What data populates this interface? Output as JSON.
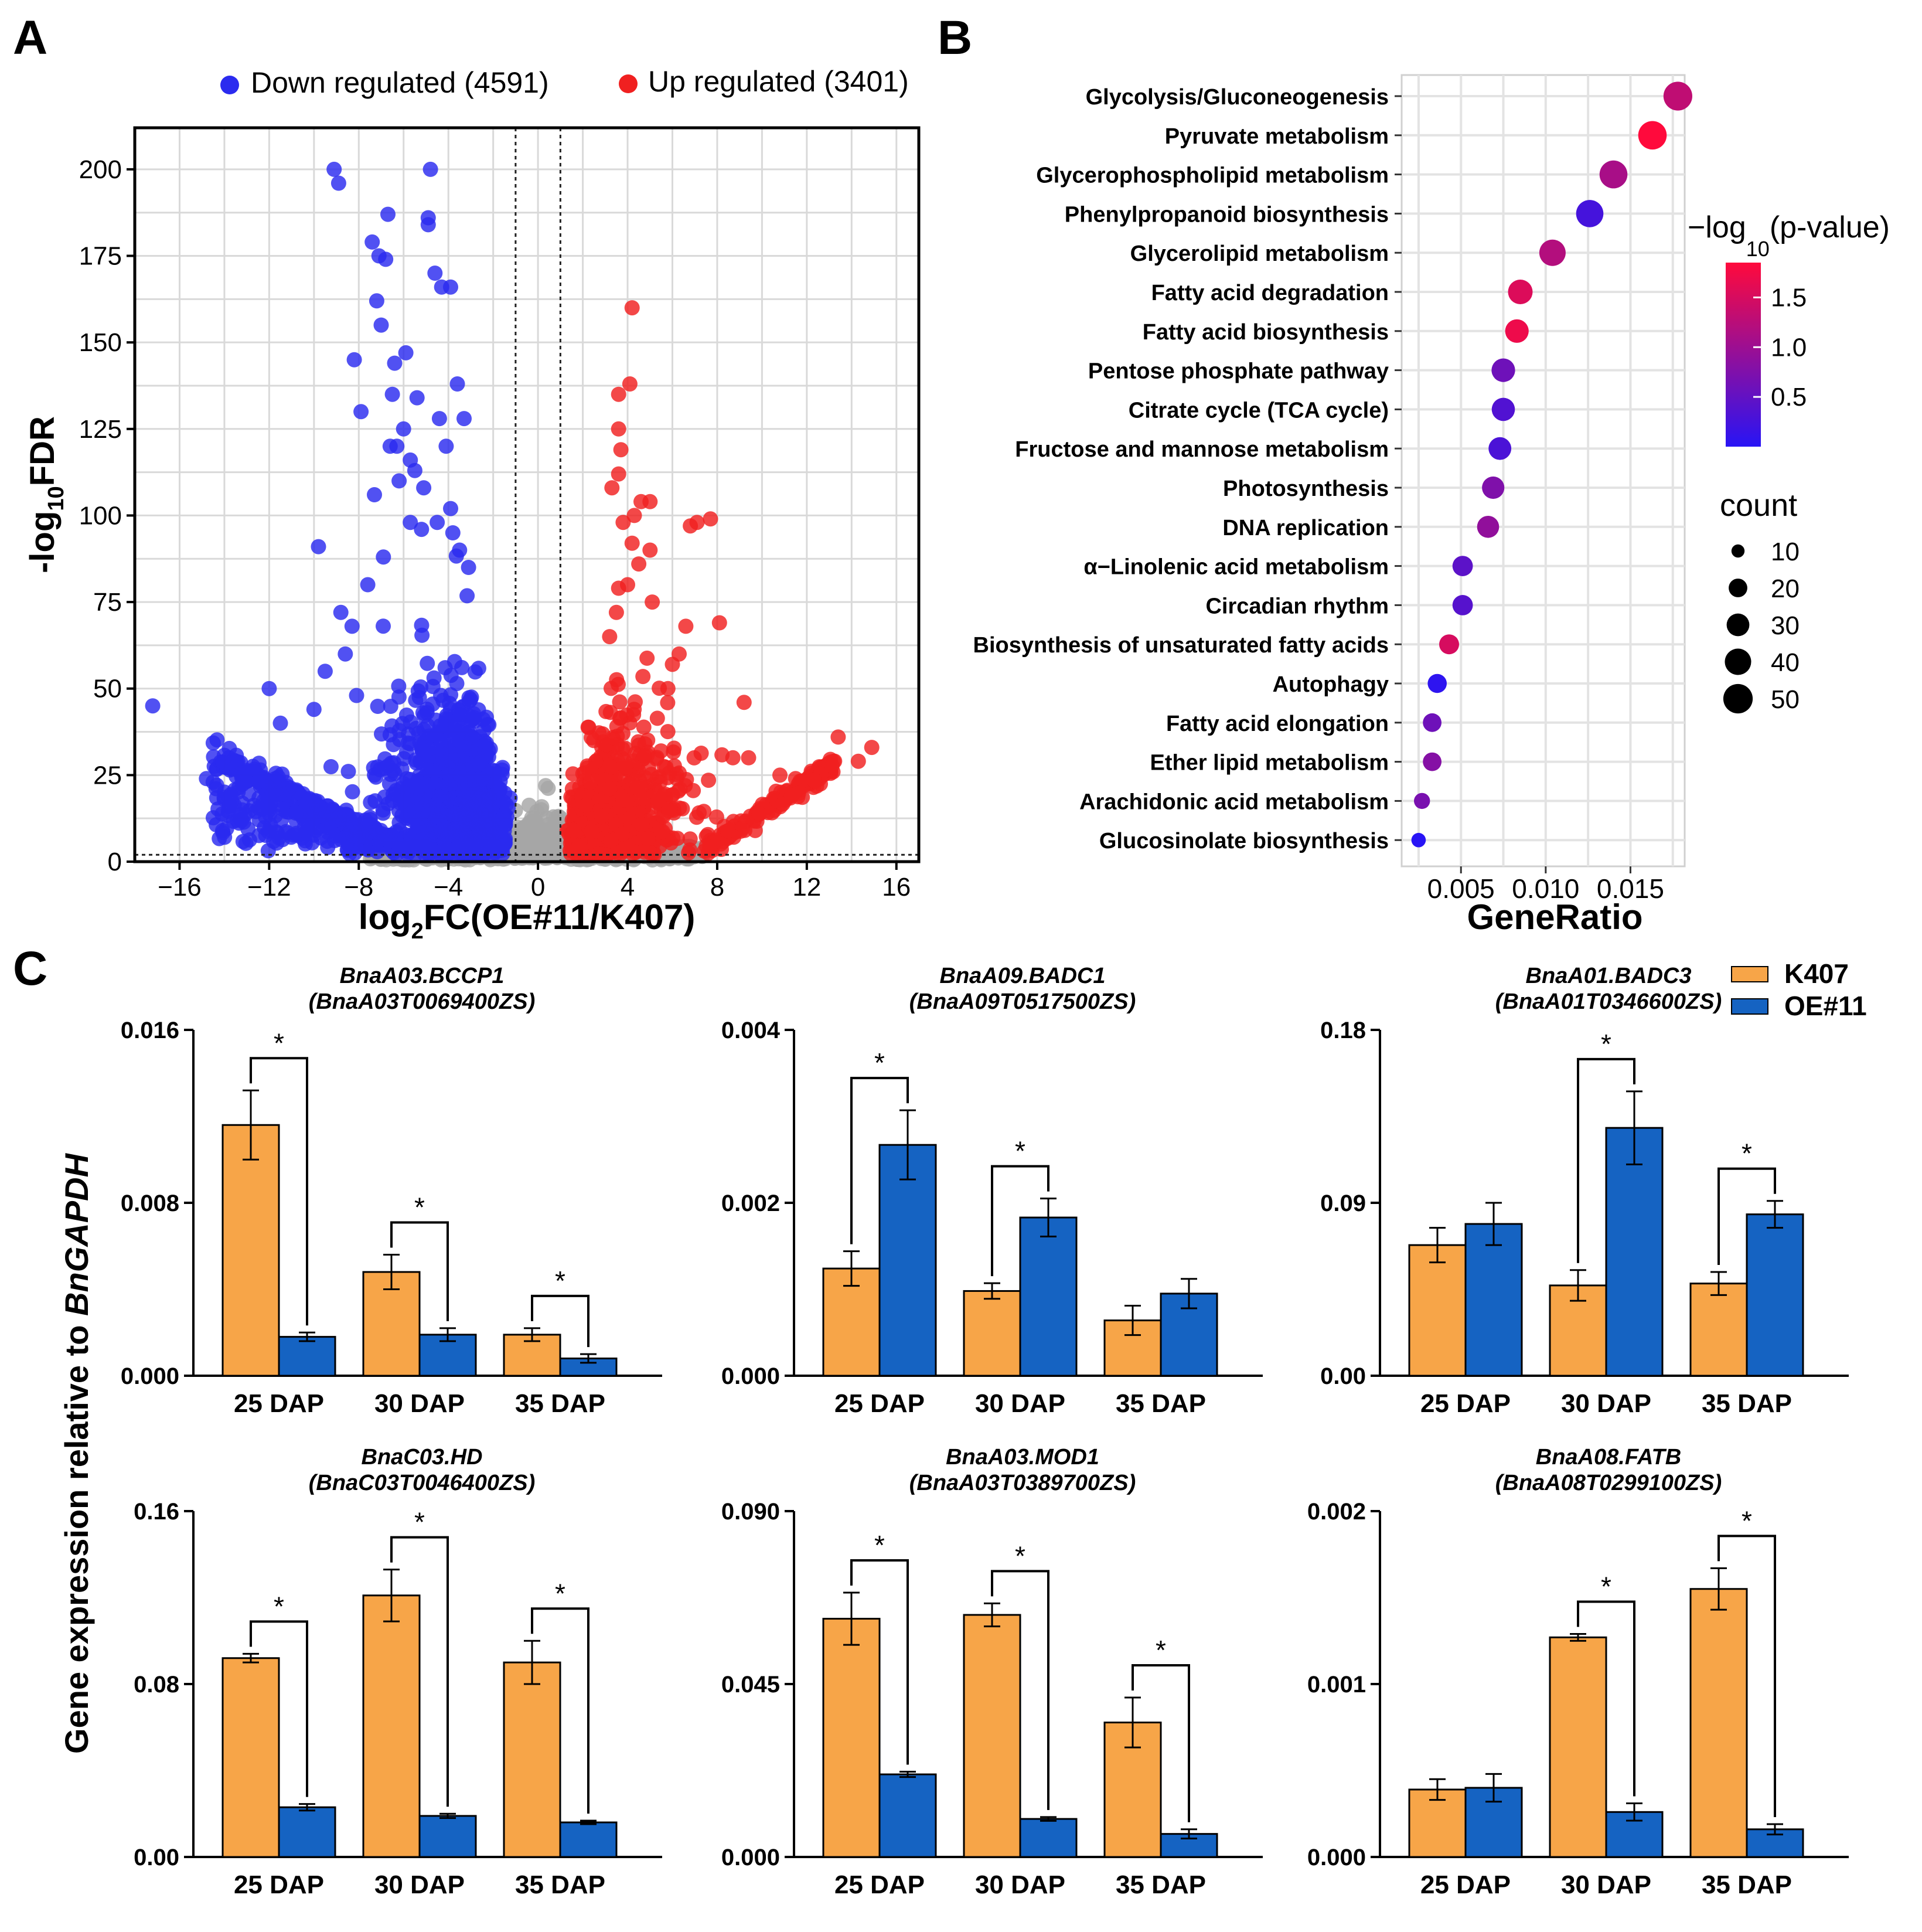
{
  "panel_labels": {
    "a": "A",
    "b": "B",
    "c": "C"
  },
  "chart_data": [
    {
      "id": "volcano",
      "type": "scatter",
      "xlabel_main": "log",
      "xlabel_sub": "2",
      "xlabel_rest": "FC(OE#11/K407)",
      "ylabel_pre": "-log",
      "ylabel_sub": "10",
      "ylabel_post": "FDR",
      "xlim": [
        -18,
        17
      ],
      "ylim": [
        0,
        212
      ],
      "xticks": [
        -16,
        -12,
        -8,
        -4,
        0,
        4,
        8,
        12,
        16
      ],
      "yticks": [
        0,
        25,
        50,
        75,
        100,
        125,
        150,
        175,
        200
      ],
      "thresholds": {
        "fdr_line": 2,
        "fc_lines": [
          -1,
          1
        ]
      },
      "grid": true,
      "legend": [
        {
          "label": "Down regulated (4591)",
          "color": "#2b2bef"
        },
        {
          "label": "Up regulated (3401)",
          "color": "#f02020"
        }
      ],
      "colors": {
        "down": "#2b2bef",
        "up": "#f02020",
        "ns": "#a6a6a6"
      },
      "highlight_points": {
        "down": [
          [
            -17.2,
            45
          ],
          [
            -14.8,
            24
          ],
          [
            -14.5,
            23
          ],
          [
            -13.8,
            30
          ],
          [
            -12,
            50
          ],
          [
            -12.5,
            23
          ],
          [
            -11.8,
            20
          ],
          [
            -11.5,
            40
          ],
          [
            -10.8,
            14
          ],
          [
            -10,
            44
          ],
          [
            -9.8,
            91
          ],
          [
            -9.5,
            55
          ],
          [
            -9.1,
            200
          ],
          [
            -8.9,
            196
          ],
          [
            -8.8,
            72
          ],
          [
            -8.6,
            60
          ],
          [
            -8.2,
            145
          ],
          [
            -8.1,
            48
          ],
          [
            -7.9,
            130
          ],
          [
            -7.4,
            179
          ],
          [
            -7.2,
            162
          ],
          [
            -7.1,
            175
          ],
          [
            -7.3,
            106
          ],
          [
            -7,
            155
          ],
          [
            -6.8,
            174
          ],
          [
            -6.7,
            187
          ],
          [
            -6.6,
            120
          ],
          [
            -6.5,
            135
          ],
          [
            -6.4,
            144
          ],
          [
            -6.3,
            120
          ],
          [
            -6.2,
            110
          ],
          [
            -6,
            125
          ],
          [
            -5.9,
            147
          ],
          [
            -5.7,
            116
          ],
          [
            -5.5,
            113
          ],
          [
            -5.4,
            134
          ],
          [
            -5.2,
            96
          ],
          [
            -5.1,
            108
          ],
          [
            -4.9,
            186
          ],
          [
            -4.9,
            184
          ],
          [
            -4.8,
            200
          ],
          [
            -4.6,
            170
          ],
          [
            -4.4,
            128
          ],
          [
            -4.3,
            166
          ],
          [
            -4.1,
            120
          ],
          [
            -3.9,
            166
          ],
          [
            -3.6,
            138
          ],
          [
            -3.3,
            128
          ],
          [
            -3.9,
            102
          ],
          [
            -3.5,
            90
          ],
          [
            -3.1,
            85
          ],
          [
            -3.8,
            95
          ],
          [
            -4.5,
            98
          ],
          [
            -5.7,
            98
          ],
          [
            -6.9,
            88
          ],
          [
            -7.6,
            80
          ],
          [
            -8.3,
            68
          ]
        ],
        "up": [
          [
            4.2,
            160
          ],
          [
            3.6,
            135
          ],
          [
            4.1,
            138
          ],
          [
            3.6,
            125
          ],
          [
            3.7,
            119
          ],
          [
            3.6,
            112
          ],
          [
            4.6,
            104
          ],
          [
            5.0,
            104
          ],
          [
            3.3,
            108
          ],
          [
            4.3,
            100
          ],
          [
            4.5,
            86
          ],
          [
            5.0,
            90
          ],
          [
            4.2,
            92
          ],
          [
            3.8,
            98
          ],
          [
            3.6,
            79
          ],
          [
            3.5,
            72
          ],
          [
            4.0,
            80
          ],
          [
            6.8,
            97
          ],
          [
            7.1,
            98
          ],
          [
            7.7,
            99
          ],
          [
            6.6,
            68
          ],
          [
            8.1,
            69
          ],
          [
            5.1,
            75
          ],
          [
            6.0,
            57
          ],
          [
            6.3,
            60
          ],
          [
            9.2,
            46
          ],
          [
            5.8,
            50
          ],
          [
            8.7,
            30
          ],
          [
            9.4,
            30
          ],
          [
            10.8,
            25
          ],
          [
            11.5,
            24
          ],
          [
            13.4,
            36
          ],
          [
            14.3,
            29
          ],
          [
            14.9,
            33
          ],
          [
            3.2,
            65
          ]
        ]
      }
    },
    {
      "id": "kegg",
      "type": "dot",
      "xlabel": "GeneRatio",
      "xlim": [
        0.0015,
        0.0182
      ],
      "xticks": [
        0.005,
        0.01,
        0.015
      ],
      "xtick_labels": [
        "0.005",
        "0.010",
        "0.015"
      ],
      "categories": [
        "Glycolysis/Gluconeogenesis",
        "Pyruvate metabolism",
        "Glycerophospholipid metabolism",
        "Phenylpropanoid biosynthesis",
        "Glycerolipid metabolism",
        "Fatty acid degradation",
        "Fatty acid biosynthesis",
        "Pentose phosphate pathway",
        "Citrate cycle (TCA cycle)",
        "Fructose and mannose metabolism",
        "Photosynthesis",
        "DNA replication",
        "α−Linolenic acid metabolism",
        "Circadian rhythm",
        "Biosynthesis of unsaturated fatty acids",
        "Autophagy",
        "Fatty acid elongation",
        "Ether lipid metabolism",
        "Arachidonic acid metabolism",
        "Glucosinolate biosynthesis"
      ],
      "gene_ratio": [
        0.0178,
        0.0163,
        0.014,
        0.0126,
        0.0104,
        0.0085,
        0.0083,
        0.0075,
        0.0075,
        0.0073,
        0.0069,
        0.0066,
        0.0051,
        0.0051,
        0.0043,
        0.0036,
        0.0033,
        0.0033,
        0.0027,
        0.0025
      ],
      "neg_log10_p": [
        1.3,
        1.9,
        1.1,
        0.25,
        1.2,
        1.55,
        1.7,
        0.6,
        0.35,
        0.3,
        0.75,
        0.9,
        0.45,
        0.4,
        1.5,
        0.05,
        0.6,
        0.8,
        0.7,
        0.0
      ],
      "count": [
        48,
        47,
        45,
        43,
        40,
        35,
        32,
        32,
        31,
        30,
        29,
        28,
        24,
        24,
        23,
        21,
        20,
        20,
        15,
        12
      ],
      "color_legend": {
        "title_pre": "−log",
        "title_sub": "10",
        "title_post": "(p-value)",
        "ticks": [
          "1.5",
          "1.0",
          "0.5"
        ],
        "values": [
          1.5,
          1.0,
          0.5
        ],
        "range": [
          0.0,
          1.85
        ]
      },
      "size_legend": {
        "title": "count",
        "labels": [
          "10",
          "20",
          "30",
          "40",
          "50"
        ],
        "values": [
          10,
          20,
          30,
          40,
          50
        ]
      }
    },
    {
      "id": "qpcr",
      "type": "bar",
      "ylabel_pre": "Gene expression relative to ",
      "ylabel_italic": "BnGAPDH",
      "categories": [
        "25 DAP",
        "30 DAP",
        "35 DAP"
      ],
      "legend": [
        {
          "label": "K407",
          "color": "#f7a548"
        },
        {
          "label": "OE#11",
          "color": "#1563c2"
        }
      ],
      "significance_mark": "*",
      "panels": [
        {
          "gene": "BnaA03.BCCP1",
          "id": "(BnaA03T0069400ZS)",
          "ymax": 0.016,
          "ticks": [
            "0.000",
            "0.008",
            "0.016"
          ],
          "k407": [
            0.0116,
            0.0048,
            0.0019
          ],
          "k407_err": [
            0.0016,
            0.0008,
            0.0003
          ],
          "oe": [
            0.0018,
            0.0019,
            0.0008
          ],
          "oe_err": [
            0.0002,
            0.0003,
            0.0002
          ],
          "sig": [
            true,
            true,
            true
          ]
        },
        {
          "gene": "BnaA09.BADC1",
          "id": "(BnaA09T0517500ZS)",
          "ymax": 0.004,
          "ticks": [
            "0.000",
            "0.002",
            "0.004"
          ],
          "k407": [
            0.00124,
            0.00098,
            0.00064
          ],
          "k407_err": [
            0.0002,
            9e-05,
            0.00017
          ],
          "oe": [
            0.00267,
            0.00183,
            0.00095
          ],
          "oe_err": [
            0.0004,
            0.00022,
            0.00017
          ],
          "sig": [
            true,
            true,
            false
          ]
        },
        {
          "gene": "BnaA01.BADC3",
          "id": "(BnaA01T0346600ZS)",
          "ymax": 0.18,
          "ticks": [
            "0.00",
            "0.09",
            "0.18"
          ],
          "k407": [
            0.068,
            0.047,
            0.048
          ],
          "k407_err": [
            0.009,
            0.008,
            0.006
          ],
          "oe": [
            0.079,
            0.129,
            0.084
          ],
          "oe_err": [
            0.011,
            0.019,
            0.007
          ],
          "sig": [
            false,
            true,
            true
          ]
        },
        {
          "gene": "BnaC03.HD",
          "id": "(BnaC03T0046400ZS)",
          "ymax": 0.16,
          "ticks": [
            "0.00",
            "0.08",
            "0.16"
          ],
          "k407": [
            0.092,
            0.121,
            0.09
          ],
          "k407_err": [
            0.002,
            0.012,
            0.01
          ],
          "oe": [
            0.023,
            0.019,
            0.016
          ],
          "oe_err": [
            0.0015,
            0.001,
            0.0008
          ],
          "sig": [
            true,
            true,
            true
          ]
        },
        {
          "gene": "BnaA03.MOD1",
          "id": "(BnaA03T0389700ZS)",
          "ymax": 0.09,
          "ticks": [
            "0.000",
            "0.045",
            "0.090"
          ],
          "k407": [
            0.062,
            0.063,
            0.035
          ],
          "k407_err": [
            0.0068,
            0.003,
            0.0065
          ],
          "oe": [
            0.0215,
            0.0099,
            0.006
          ],
          "oe_err": [
            0.0007,
            0.0005,
            0.0012
          ],
          "sig": [
            true,
            true,
            true
          ]
        },
        {
          "gene": "BnaA08.FATB",
          "id": "(BnaA08T0299100ZS)",
          "ymax": 0.002,
          "ticks": [
            "0.000",
            "0.001",
            "0.002"
          ],
          "k407": [
            0.00039,
            0.00127,
            0.00155
          ],
          "k407_err": [
            6e-05,
            2e-05,
            0.00012
          ],
          "oe": [
            0.0004,
            0.00026,
            0.00016
          ],
          "oe_err": [
            8e-05,
            5e-05,
            3e-05
          ],
          "sig": [
            false,
            true,
            true
          ]
        }
      ]
    }
  ]
}
